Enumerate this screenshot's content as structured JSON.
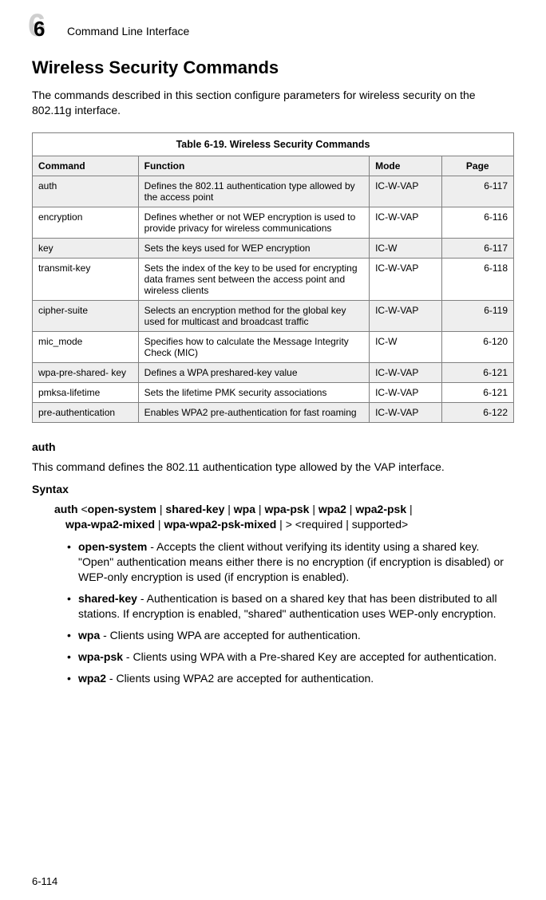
{
  "header": {
    "chapter_bg": "6",
    "chapter_fg": "6",
    "running_title": "Command Line Interface"
  },
  "title": "Wireless Security Commands",
  "intro": "The commands described in this section configure parameters for wireless security on the 802.11g interface.",
  "table": {
    "caption": "Table 6-19. Wireless Security Commands",
    "headers": {
      "cmd": "Command",
      "func": "Function",
      "mode": "Mode",
      "page": "Page"
    },
    "rows": [
      {
        "cmd": "auth",
        "func": "Defines the 802.11 authentication type allowed by the access point",
        "mode": "IC-W-VAP",
        "page": "6-117",
        "shaded": true
      },
      {
        "cmd": "encryption",
        "func": "Defines whether or not WEP encryption is used to provide privacy for wireless communications",
        "mode": "IC-W-VAP",
        "page": "6-116",
        "shaded": false
      },
      {
        "cmd": "key",
        "func": "Sets the keys used for WEP encryption",
        "mode": "IC-W",
        "page": "6-117",
        "shaded": true
      },
      {
        "cmd": "transmit-key",
        "func": "Sets the index of the key to be used for encrypting data frames sent between the access point and wireless clients",
        "mode": "IC-W-VAP",
        "page": "6-118",
        "shaded": false
      },
      {
        "cmd": "cipher-suite",
        "func": "Selects an encryption method for the global key used for multicast and broadcast traffic",
        "mode": "IC-W-VAP",
        "page": "6-119",
        "shaded": true
      },
      {
        "cmd": "mic_mode",
        "func": "Specifies how to calculate the Message Integrity Check (MIC)",
        "mode": "IC-W",
        "page": "6-120",
        "shaded": false
      },
      {
        "cmd": "wpa-pre-shared- key",
        "func": "Defines a WPA preshared-key value",
        "mode": "IC-W-VAP",
        "page": "6-121",
        "shaded": true
      },
      {
        "cmd": "pmksa-lifetime",
        "func": "Sets the lifetime PMK security associations",
        "mode": "IC-W-VAP",
        "page": "6-121",
        "shaded": false
      },
      {
        "cmd": "pre-authentication",
        "func": "Enables WPA2 pre-authentication for fast roaming",
        "mode": "IC-W-VAP",
        "page": "6-122",
        "shaded": true
      }
    ]
  },
  "auth_section": {
    "heading": "auth",
    "desc": "This command defines the 802.11 authentication type allowed by the VAP interface.",
    "syntax_label": "Syntax",
    "syntax_line1_parts": [
      "auth",
      " <",
      "open-system",
      " | ",
      "shared-key",
      " | ",
      "wpa",
      " | ",
      "wpa-psk",
      " | ",
      "wpa2",
      " | ",
      "wpa2-psk",
      " |"
    ],
    "syntax_line2_parts": [
      "wpa-wpa2-mixed",
      " | ",
      "wpa-wpa2-psk-mixed",
      " | > <required | supported>"
    ],
    "options": [
      {
        "term": "open-system",
        "desc": " - Accepts the client without verifying its identity using a shared key. \"Open\" authentication means either there is no encryption (if encryption is disabled) or WEP-only encryption is used (if encryption is enabled)."
      },
      {
        "term": "shared-key",
        "desc": " - Authentication is based on a shared key that has been distributed to all stations. If encryption is enabled, \"shared\" authentication uses WEP-only encryption."
      },
      {
        "term": "wpa",
        "desc": " - Clients using WPA are accepted for authentication."
      },
      {
        "term": "wpa-psk",
        "desc": " - Clients using WPA with a Pre-shared Key are accepted for authentication."
      },
      {
        "term": "wpa2",
        "desc": " - Clients using WPA2 are accepted for authentication."
      }
    ]
  },
  "page_number": "6-114"
}
